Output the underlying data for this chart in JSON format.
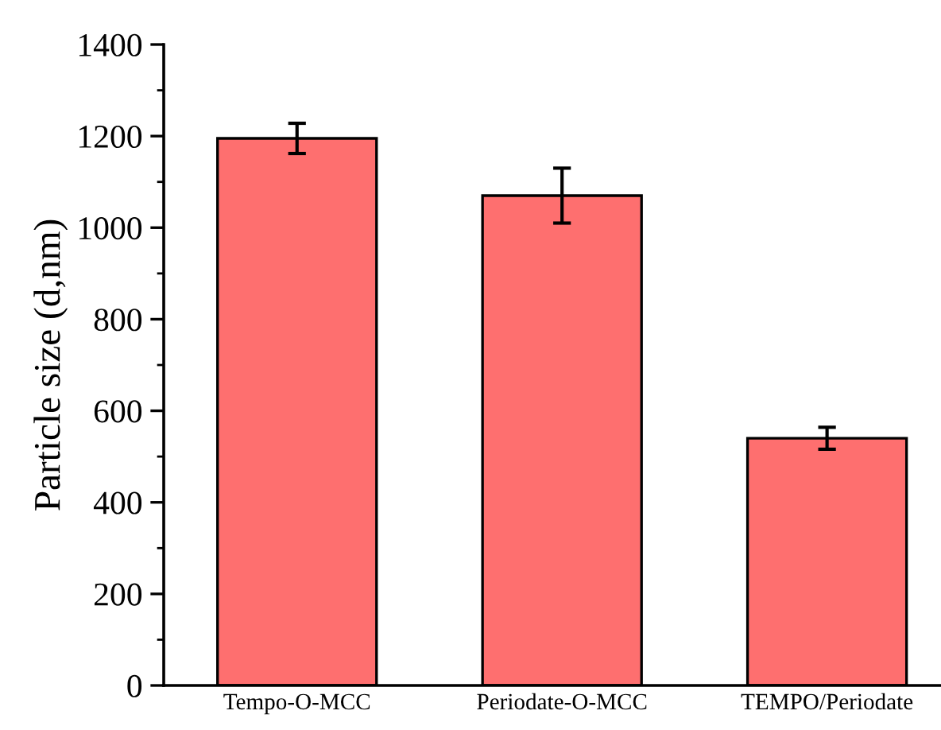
{
  "chart_data": {
    "type": "bar",
    "ylabel": "Particle size (d,nm)",
    "categories": [
      "Tempo-O-MCC",
      "Periodate-O-MCC",
      "TEMPO/Periodate"
    ],
    "values": [
      1195,
      1070,
      540
    ],
    "errors": [
      33,
      60,
      24
    ],
    "color": "#fe6f6f",
    "ylim": [
      0,
      1400
    ],
    "yticks": [
      0,
      200,
      400,
      600,
      800,
      1000,
      1200,
      1400
    ],
    "grid": false
  }
}
